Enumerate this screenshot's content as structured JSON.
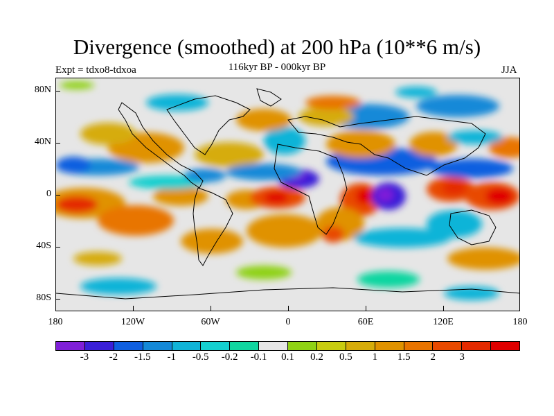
{
  "title": "Divergence (smoothed) at 200 hPa (10**6 m/s)",
  "subtitle": "116kyr BP - 000kyr BP",
  "experiment": "Expt = tdxo8-tdxoa",
  "season": "JJA",
  "axes": {
    "y_ticks": [
      "80N",
      "40N",
      "0",
      "40S",
      "80S"
    ],
    "x_ticks": [
      "180",
      "120W",
      "60W",
      "0",
      "60E",
      "120E",
      "180"
    ]
  },
  "colorbar": {
    "colors": [
      "#7f1fd8",
      "#3a1fd8",
      "#0f5fe0",
      "#1489d8",
      "#10b4d8",
      "#14cfcf",
      "#10d6a0",
      "#e6e6e6",
      "#8fd214",
      "#c8cc10",
      "#d6ac0a",
      "#e09200",
      "#e87400",
      "#e84a00",
      "#e42a00",
      "#e00000"
    ],
    "labels": [
      "-3",
      "-2",
      "-1.5",
      "-1",
      "-0.5",
      "-0.2",
      "-0.1",
      "0.1",
      "0.2",
      "0.5",
      "1",
      "1.5",
      "2",
      "3"
    ]
  }
}
